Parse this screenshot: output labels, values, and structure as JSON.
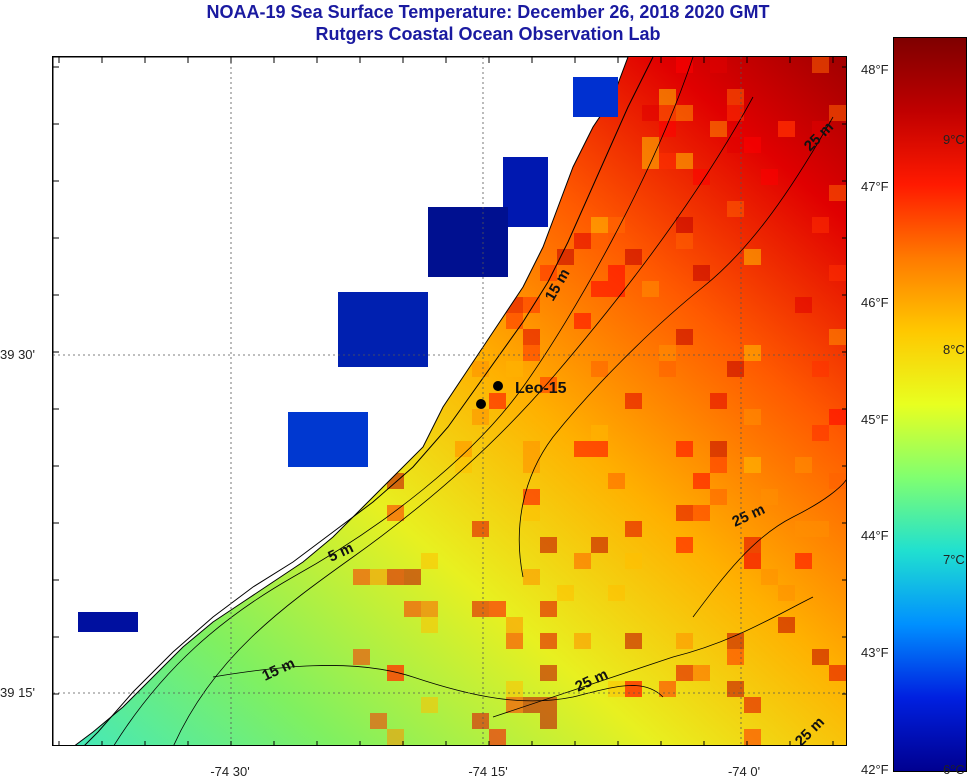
{
  "title": "NOAA-19 Sea Surface Temperature:  December 26, 2018 2020 GMT",
  "subtitle": "Rutgers Coastal Ocean Observation Lab",
  "station_label": "Leo-15",
  "latitude_labels": [
    "39 30'",
    "39 15'"
  ],
  "longitude_labels": [
    "-74 30'",
    "-74 15'",
    "-74 0'"
  ],
  "depth_contour_labels": [
    "15 m",
    "5 m",
    "15 m",
    "25 m",
    "25 m",
    "25 m",
    "25 m"
  ],
  "colorbar": {
    "fahrenheit_labels": [
      "48°F",
      "47°F",
      "46°F",
      "45°F",
      "44°F",
      "43°F",
      "42°F"
    ],
    "celsius_labels": [
      "9°C",
      "8°C",
      "7°C",
      "6°C"
    ],
    "colors": [
      "#7f0000",
      "#c00000",
      "#ff1a00",
      "#ff7a00",
      "#ffc800",
      "#e8ff20",
      "#80ff70",
      "#20e0d0",
      "#0090ff",
      "#0020e0",
      "#000090"
    ]
  },
  "land_color": "#ffffff",
  "contour_color": "#000000"
}
